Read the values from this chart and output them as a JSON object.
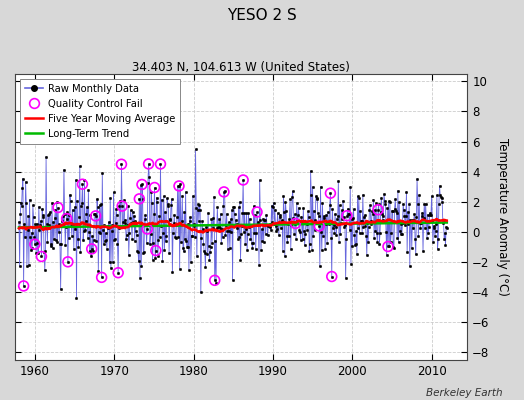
{
  "title": "YESO 2 S",
  "subtitle": "34.403 N, 104.613 W (United States)",
  "ylabel": "Temperature Anomaly (°C)",
  "credit": "Berkeley Earth",
  "xlim": [
    1957.5,
    2014.5
  ],
  "ylim": [
    -8.5,
    10.5
  ],
  "yticks": [
    -8,
    -6,
    -4,
    -2,
    0,
    2,
    4,
    6,
    8,
    10
  ],
  "xticks": [
    1960,
    1970,
    1980,
    1990,
    2000,
    2010
  ],
  "fig_bg_color": "#d8d8d8",
  "plot_bg_color": "#ffffff",
  "raw_line_color": "#6666dd",
  "raw_marker_color": "#000000",
  "qc_fail_color": "#ff00ff",
  "moving_avg_color": "#ff0000",
  "trend_color": "#00bb00",
  "seed": 17,
  "n_months": 648,
  "start_year": 1958.0,
  "trend_slope": 0.006,
  "trend_intercept": 0.3
}
